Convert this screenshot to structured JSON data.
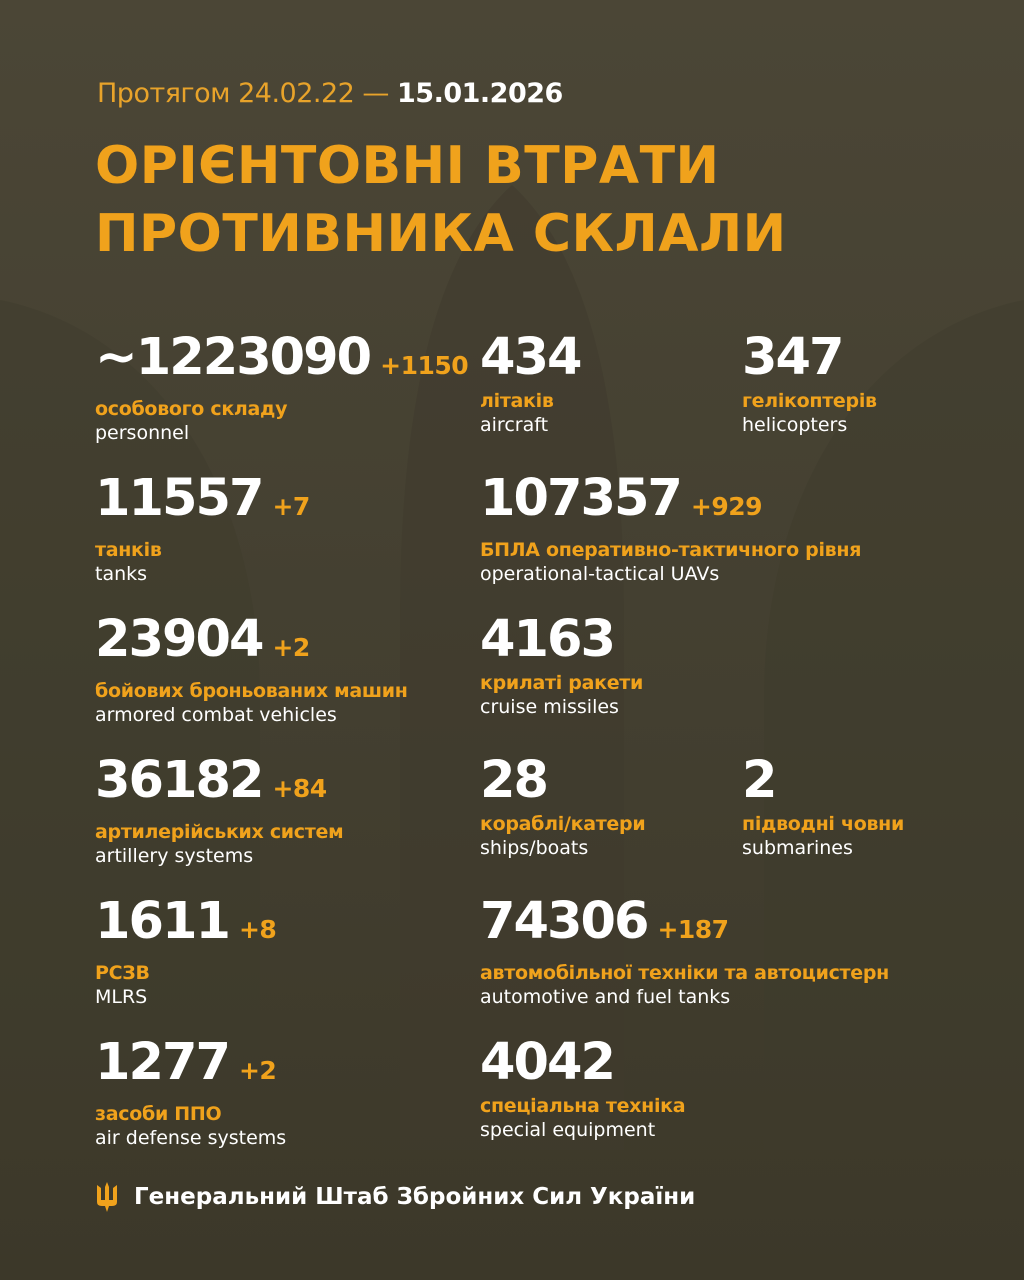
{
  "header": {
    "period_prefix": "Протягом 24.02.22 —",
    "period_end": "15.01.2026",
    "title_line1": "ОРІЄНТОВНІ ВТРАТИ",
    "title_line2": "ПРОТИВНИКА СКЛАЛИ"
  },
  "stats": [
    {
      "value": "~1223090",
      "delta": "+1150",
      "ua": "особового складу",
      "en": "personnel"
    },
    {
      "value": "434",
      "delta": "",
      "ua": "літаків",
      "en": "aircraft"
    },
    {
      "value": "347",
      "delta": "",
      "ua": "гелікоптерів",
      "en": "helicopters"
    },
    {
      "value": "11557",
      "delta": "+7",
      "ua": "танків",
      "en": "tanks"
    },
    {
      "value": "107357",
      "delta": "+929",
      "ua": "БПЛА оперативно-тактичного рівня",
      "en": "operational-tactical UAVs"
    },
    {
      "value": "23904",
      "delta": "+2",
      "ua": "бойових броньованих машин",
      "en": "armored combat vehicles"
    },
    {
      "value": "4163",
      "delta": "",
      "ua": "крилаті ракети",
      "en": "cruise missiles"
    },
    {
      "value": "36182",
      "delta": "+84",
      "ua": "артилерійських систем",
      "en": "artillery systems"
    },
    {
      "value": "28",
      "delta": "",
      "ua": "кораблі/катери",
      "en": "ships/boats"
    },
    {
      "value": "2",
      "delta": "",
      "ua": "підводні човни",
      "en": "submarines"
    },
    {
      "value": "1611",
      "delta": "+8",
      "ua": "РСЗВ",
      "en": "MLRS"
    },
    {
      "value": "74306",
      "delta": "+187",
      "ua": "автомобільної техніки та автоцистерн",
      "en": "automotive and fuel tanks"
    },
    {
      "value": "1277",
      "delta": "+2",
      "ua": "засоби ППО",
      "en": "air defense systems"
    },
    {
      "value": "4042",
      "delta": "",
      "ua": "спеціальна техніка",
      "en": "special equipment"
    }
  ],
  "footer": {
    "text": "Генеральний Штаб Збройних Сил України",
    "icon": "trident-icon"
  },
  "colors": {
    "accent": "#f0a21c",
    "background": "#4b4636",
    "text": "#ffffff"
  }
}
